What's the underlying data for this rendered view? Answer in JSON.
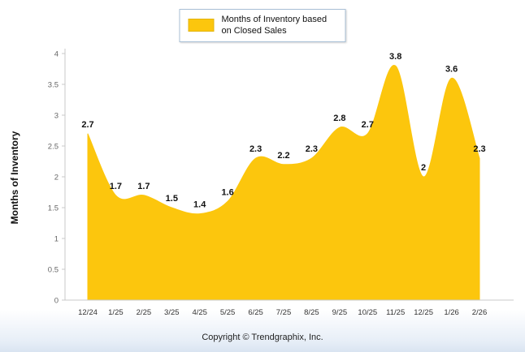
{
  "chart_data": {
    "type": "area",
    "categories": [
      "12/24",
      "1/25",
      "2/25",
      "3/25",
      "4/25",
      "5/25",
      "6/25",
      "7/25",
      "8/25",
      "9/25",
      "10/25",
      "11/25",
      "12/25",
      "1/26",
      "2/26"
    ],
    "values": [
      2.7,
      1.7,
      1.7,
      1.5,
      1.4,
      1.6,
      2.3,
      2.2,
      2.3,
      2.8,
      2.7,
      3.8,
      2,
      3.6,
      2.3
    ],
    "title": "",
    "legend": "Months of Inventory based on Closed Sales",
    "xlabel": "",
    "ylabel": "Months of Inventory",
    "ylim": [
      0,
      4
    ],
    "ytick_step": 0.5,
    "grid": false,
    "legend_position": "top-center",
    "colors": {
      "series_fill": "#FCC60D",
      "axis": "#C9C9C9",
      "tick_label": "#666666",
      "x_label": "#333333",
      "data_label": "#111111",
      "legend_border": "#A9C0D6"
    }
  },
  "footer": {
    "copyright": "Copyright © Trendgraphix, Inc."
  }
}
